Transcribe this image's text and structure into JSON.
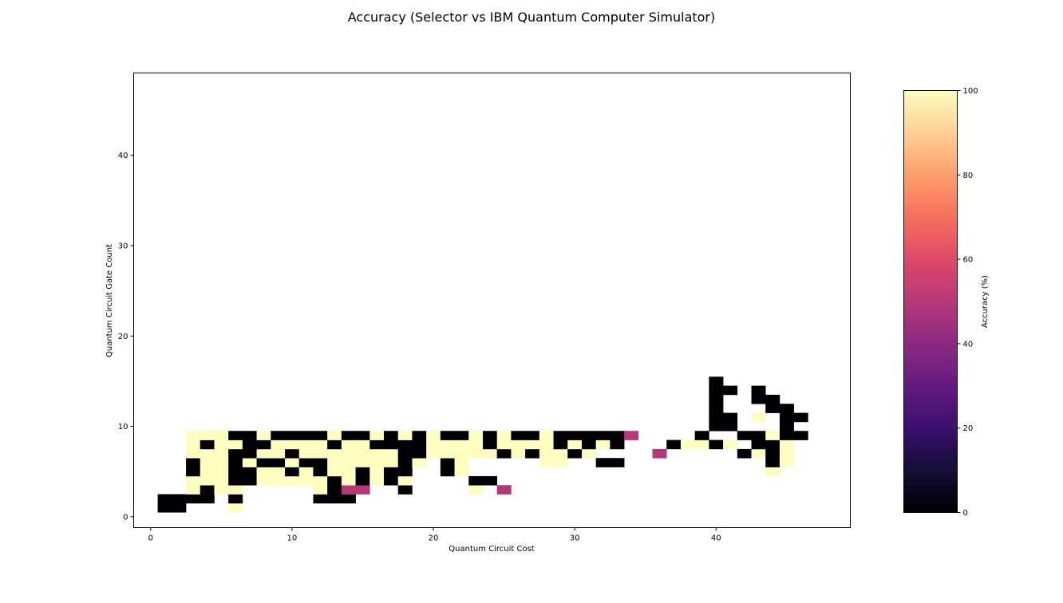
{
  "chart_data": {
    "type": "heatmap",
    "title": "Accuracy (Selector vs IBM Quantum Computer Simulator)",
    "xlabel": "Quantum Circuit Cost",
    "ylabel": "Quantum Circuit Gate Count",
    "xlim": [
      -1.2,
      49.5
    ],
    "ylim": [
      -1.2,
      49.1
    ],
    "x_ticks": [
      0,
      10,
      20,
      30,
      40
    ],
    "y_ticks": [
      0,
      10,
      20,
      30,
      40
    ],
    "colormap": "magma",
    "colorbar": {
      "label": "Accuracy (%)",
      "range": [
        0,
        100
      ],
      "ticks": [
        0,
        20,
        40,
        60,
        80,
        100
      ]
    },
    "value_colors": {
      "0": "#000004",
      "50": "#b73779",
      "100": "#fcfdbf"
    },
    "cell_encoding": "rows[y] is a string of characters for x = 0..47; '.' = no data, '#' = 0%, 'm' = 50%, 'y' = 100%",
    "rows": [
      "................................................",
      ".##...y.........................................",
      ".####.#.....###.................................",
      "...y#yy.....y#mm..#....y.m......................",
      "...yyy##yyyyy#y#y#y....##.......................",
      "...#yy##yy#y#yy#y##..#y.....................y...",
      "...#yy#y##y##yyyyy#y.#y.....yy..##..........#y..",
      "...yyy##yy#yyyyyyy##yyyyy#y#yy#y....m.....#y#y..",
      "...y#yy##yyyy#yy####yyyy#yyyy#y#y#...#yy#y.##y..",
      "...yyy##y####y##y#y#y##y#y##y#####m....#..##y##.",
      "........................................##...#..",
      "........................................##.y.##.",
      "........................................#...##..",
      "........................................#..##...",
      "........................................##.#....",
      "........................................#.......",
      "................................................",
      "................................................",
      "................................................",
      "................................................",
      "................................................",
      "................................................",
      "................................................",
      "................................................",
      "................................................",
      "................................................",
      "................................................",
      "................................................",
      "................................................",
      "................................................",
      "................................................",
      "................................................",
      "................................................",
      "................................................",
      "................................................",
      "................................................",
      "................................................",
      "................................................",
      "................................................",
      "................................................",
      "................................................",
      "................................................",
      "................................................",
      "................................................",
      "................................................",
      "................................................",
      "................................................",
      "................................................"
    ]
  }
}
